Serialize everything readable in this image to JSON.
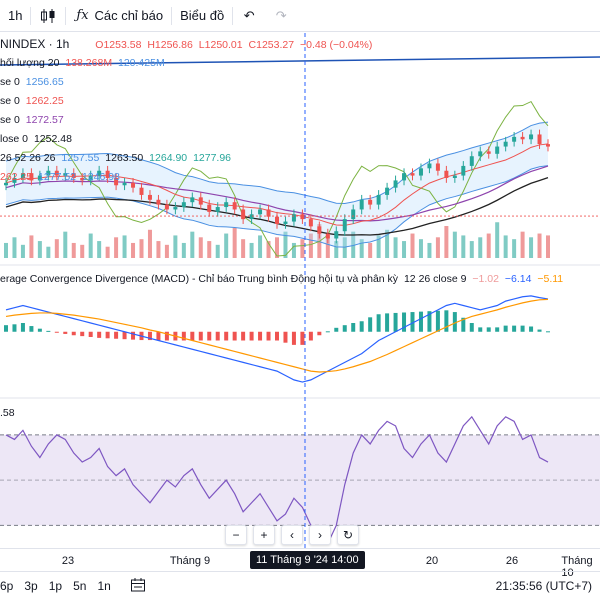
{
  "toolbar": {
    "interval": "1h",
    "indicators_label": "Các chỉ báo",
    "chart_type_label": "Biểu đồ"
  },
  "legend": {
    "symbol": "NINDEX · 1h",
    "open": "O1253.58",
    "high": "H1256.86",
    "low": "L1250.01",
    "close": "C1253.27",
    "change": "−0.48 (−0.04%)",
    "volume_label": "hối lượng 20",
    "volume_v1": "138.268M",
    "volume_v2": "120.425M",
    "ma1_label": "se 0",
    "ma1_value": "1256.65",
    "ma2_label": "se 0",
    "ma2_value": "1262.25",
    "ma3_label": "se 0",
    "ma3_value": "1272.57",
    "ma4_label": "lose 0",
    "ma4_value": "1252.48",
    "ichi1_params": "26 52 26 26",
    "ichi1_v1": "1257.55",
    "ichi1_v2": "1263.50",
    "ichi1_v3": "1264.90",
    "ichi1_v4": "1277.96",
    "ichi2_label": "262.25",
    "ichi2_v1": "1277.52",
    "ichi2_v2": "1246.98"
  },
  "macd_legend": {
    "title": "erage Convergence Divergence (MACD) - Chỉ báo Trung bình Động hội tụ và phân kỳ",
    "params": "12 26 close 9",
    "v1": "−1.02",
    "v2": "−6.14",
    "v3": "−5.11"
  },
  "rsi_legend": {
    "level": ".58"
  },
  "nav": {
    "minus": "−",
    "plus": "+",
    "left": "‹",
    "right": "›",
    "reset": "↻"
  },
  "time_axis": {
    "ticks": [
      "23",
      "Tháng 9",
      "20",
      "26",
      "Tháng 10"
    ],
    "crosshair": "11 Tháng 9 '24   14:00"
  },
  "bottom": {
    "ranges": [
      "6p",
      "3p",
      "1p",
      "5n",
      "1n"
    ],
    "clock": "21:35:56 (UTC+7)"
  },
  "colors": {
    "up": "#26a69a",
    "down": "#ef5350",
    "bb": "#4a90e2",
    "ma_purple": "#8e44ad",
    "ma_dark": "#222222",
    "ichimoku_green": "#7cb342",
    "rsi_line": "#7e57c2",
    "rsi_band": "#ede7f6"
  },
  "chart_data": {
    "type": "candlestick",
    "price": {
      "open": 1253.58,
      "high": 1256.86,
      "low": 1250.01,
      "close": 1253.27,
      "change": -0.48,
      "change_pct": -0.04,
      "ylim": [
        1238,
        1300
      ],
      "series": [
        1267,
        1269,
        1271,
        1268,
        1270,
        1272,
        1270,
        1271,
        1269,
        1268,
        1270,
        1272,
        1269,
        1266,
        1267,
        1265,
        1262,
        1260,
        1258,
        1256,
        1257,
        1259,
        1261,
        1258,
        1255,
        1257,
        1259,
        1256,
        1252,
        1254,
        1256,
        1253,
        1250,
        1251,
        1254,
        1252,
        1249,
        1246,
        1244,
        1247,
        1252,
        1256,
        1260,
        1258,
        1262,
        1265,
        1268,
        1271,
        1270,
        1273,
        1275,
        1272,
        1269,
        1270,
        1274,
        1278,
        1280,
        1279,
        1282,
        1284,
        1286,
        1285,
        1287,
        1283,
        1282
      ]
    },
    "volume": {
      "v1": "138.268M",
      "v2": "120.425M",
      "values": [
        40,
        55,
        35,
        60,
        45,
        30,
        50,
        70,
        40,
        35,
        65,
        45,
        30,
        55,
        60,
        40,
        50,
        75,
        45,
        35,
        60,
        40,
        70,
        55,
        45,
        35,
        65,
        80,
        50,
        40,
        60,
        45,
        55,
        70,
        40,
        50,
        65,
        90,
        60,
        45,
        55,
        70,
        50,
        40,
        60,
        75,
        55,
        45,
        65,
        50,
        40,
        55,
        85,
        70,
        60,
        45,
        55,
        65,
        95,
        60,
        50,
        70,
        55,
        65,
        60
      ]
    },
    "macd": {
      "params": "12 26 close 9",
      "macd": -1.02,
      "signal": -6.14,
      "hist": -5.11,
      "ylim": [
        -14,
        10
      ],
      "macd_line": [
        5,
        5.5,
        6,
        5.5,
        5,
        4.5,
        4,
        3.5,
        3,
        2.5,
        2,
        1.5,
        1,
        0.5,
        0,
        -0.5,
        -1,
        -1.5,
        -2,
        -2.5,
        -3,
        -3.5,
        -4,
        -4.5,
        -5,
        -5.5,
        -6,
        -6.5,
        -7,
        -7.5,
        -8,
        -8.5,
        -9,
        -10,
        -11,
        -11.5,
        -11,
        -10,
        -9,
        -8,
        -7,
        -6,
        -5,
        -3.5,
        -2,
        -1,
        0,
        1,
        2,
        3,
        4,
        5,
        6,
        6.5,
        6,
        5.5,
        5,
        5.5,
        6,
        7,
        7.5,
        8,
        8.2,
        7.8,
        7.5
      ],
      "signal_line": [
        3.5,
        3.8,
        4,
        4.2,
        4.3,
        4.3,
        4.2,
        4,
        3.8,
        3.5,
        3.2,
        2.9,
        2.5,
        2.1,
        1.7,
        1.3,
        0.9,
        0.4,
        0,
        -0.5,
        -1,
        -1.5,
        -2,
        -2.5,
        -3,
        -3.5,
        -4,
        -4.5,
        -5,
        -5.5,
        -6,
        -6.5,
        -7,
        -7.5,
        -8,
        -8.5,
        -9,
        -9.2,
        -9.1,
        -8.9,
        -8.5,
        -8,
        -7.4,
        -6.8,
        -6,
        -5.2,
        -4.3,
        -3.4,
        -2.5,
        -1.6,
        -0.7,
        0.2,
        1.1,
        2,
        2.8,
        3.5,
        4,
        4.5,
        5,
        5.6,
        6.1,
        6.6,
        7,
        7.3,
        7.4
      ]
    },
    "rsi": {
      "level": 58,
      "ylim": [
        20,
        85
      ],
      "band": [
        30,
        70
      ],
      "values": [
        70,
        68,
        72,
        65,
        60,
        66,
        70,
        68,
        62,
        58,
        60,
        64,
        56,
        52,
        55,
        48,
        44,
        40,
        45,
        50,
        47,
        52,
        55,
        48,
        42,
        46,
        50,
        44,
        36,
        40,
        44,
        38,
        32,
        35,
        42,
        38,
        30,
        24,
        22,
        30,
        48,
        62,
        70,
        66,
        72,
        76,
        74,
        64,
        60,
        66,
        70,
        62,
        58,
        66,
        74,
        78,
        72,
        66,
        74,
        78,
        76,
        68,
        70,
        60,
        58
      ]
    }
  }
}
